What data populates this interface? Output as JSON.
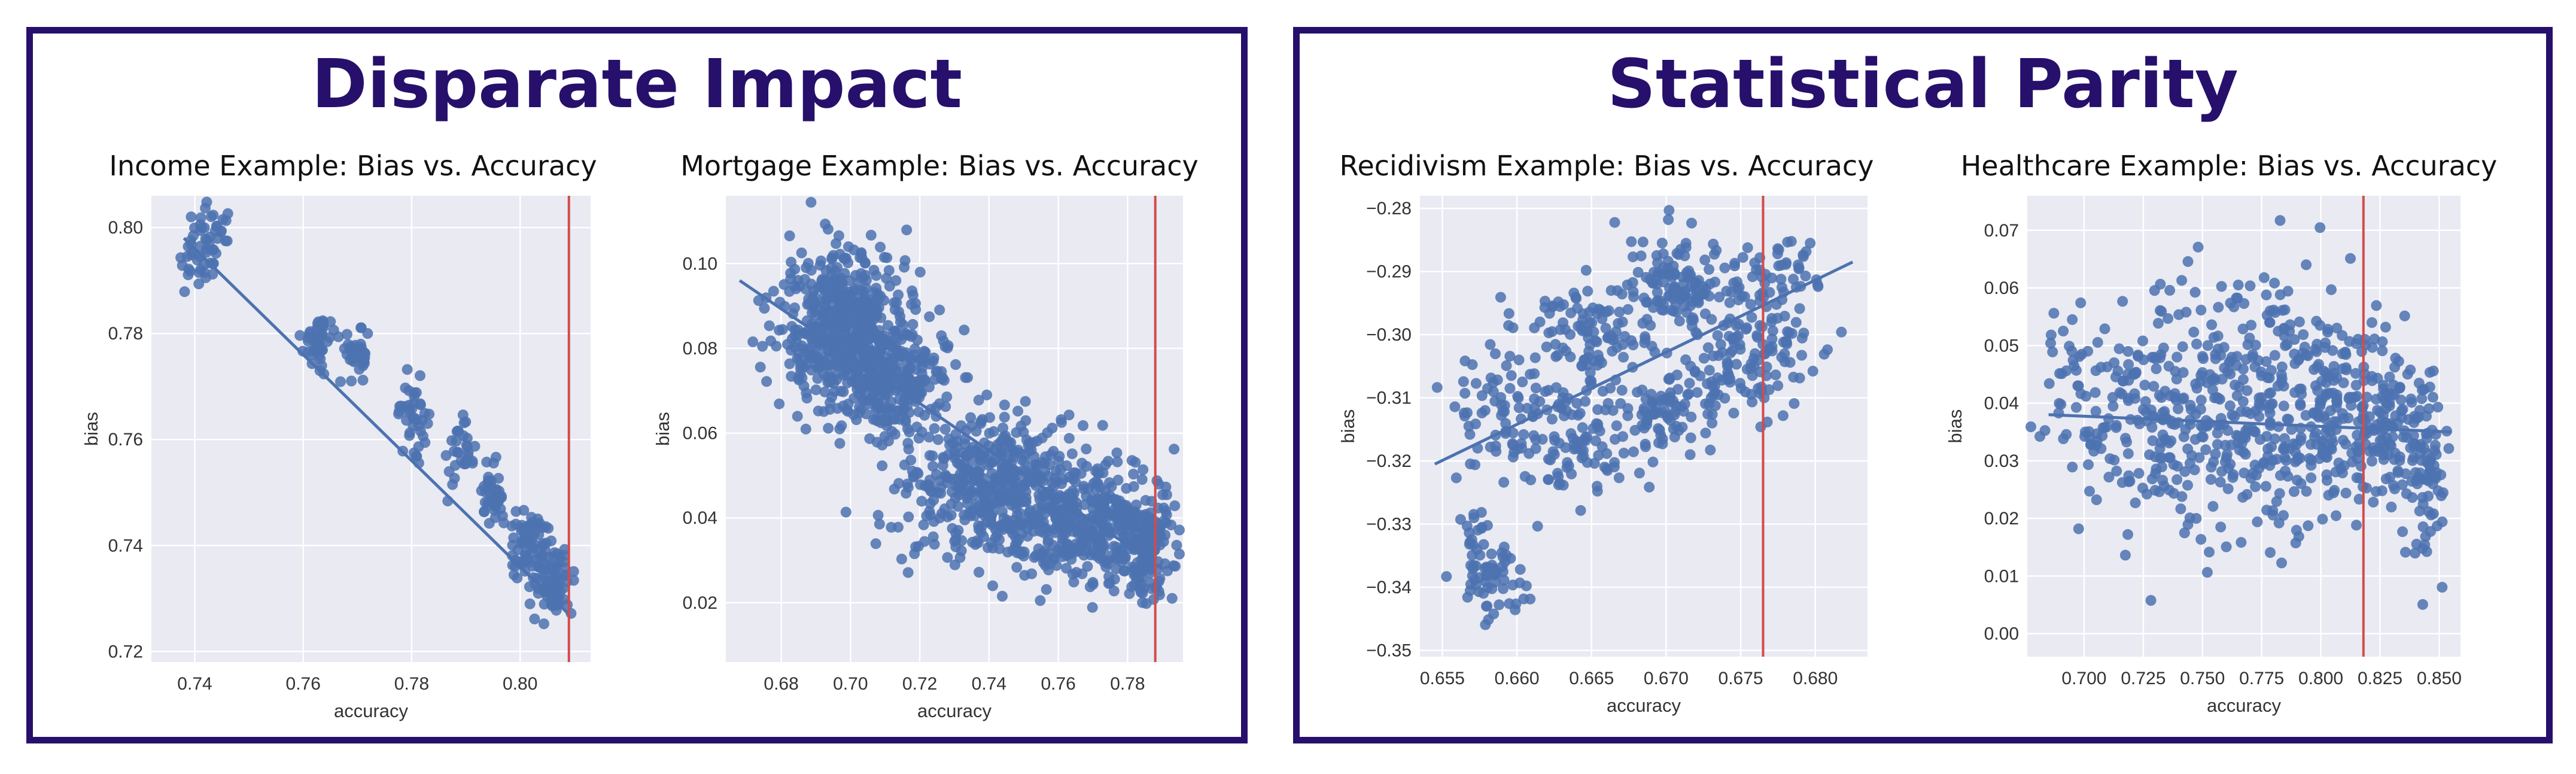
{
  "panels": [
    {
      "title": "Disparate Impact"
    },
    {
      "title": "Statistical Parity"
    }
  ],
  "colors": {
    "frame": "#26106b",
    "plot_bg": "#e9eaf2",
    "grid": "#ffffff",
    "points": "#4c72b0",
    "fit_line": "#4c72b0",
    "vline": "#d24b4b"
  },
  "chart_data": [
    {
      "type": "scatter",
      "title": "Income Example: Bias vs. Accuracy",
      "xlabel": "accuracy",
      "ylabel": "bias",
      "xlim": [
        0.732,
        0.813
      ],
      "ylim": [
        0.718,
        0.806
      ],
      "xticks": [
        0.74,
        0.76,
        0.78,
        0.8
      ],
      "xtick_labels": [
        "0.74",
        "0.76",
        "0.78",
        "0.80"
      ],
      "yticks": [
        0.72,
        0.74,
        0.76,
        0.78,
        0.8
      ],
      "ytick_labels": [
        "0.72",
        "0.74",
        "0.76",
        "0.78",
        "0.80"
      ],
      "grid": true,
      "vline": 0.809,
      "fit_line": [
        [
          0.738,
          0.798
        ],
        [
          0.809,
          0.727
        ]
      ],
      "clusters": [
        {
          "x": 0.741,
          "y": 0.795,
          "sx": 0.0025,
          "sy": 0.004,
          "n": 45
        },
        {
          "x": 0.744,
          "y": 0.802,
          "sx": 0.0015,
          "sy": 0.002,
          "n": 12
        },
        {
          "x": 0.763,
          "y": 0.779,
          "sx": 0.0015,
          "sy": 0.0025,
          "n": 45
        },
        {
          "x": 0.77,
          "y": 0.776,
          "sx": 0.0012,
          "sy": 0.0025,
          "n": 35
        },
        {
          "x": 0.78,
          "y": 0.765,
          "sx": 0.0015,
          "sy": 0.003,
          "n": 40
        },
        {
          "x": 0.789,
          "y": 0.757,
          "sx": 0.0012,
          "sy": 0.003,
          "n": 30
        },
        {
          "x": 0.795,
          "y": 0.749,
          "sx": 0.0015,
          "sy": 0.003,
          "n": 40
        },
        {
          "x": 0.802,
          "y": 0.74,
          "sx": 0.002,
          "sy": 0.003,
          "n": 70
        },
        {
          "x": 0.806,
          "y": 0.733,
          "sx": 0.0018,
          "sy": 0.003,
          "n": 80
        }
      ]
    },
    {
      "type": "scatter",
      "title": "Mortgage Example: Bias vs. Accuracy",
      "xlabel": "accuracy",
      "ylabel": "bias",
      "xlim": [
        0.664,
        0.796
      ],
      "ylim": [
        0.006,
        0.116
      ],
      "xticks": [
        0.68,
        0.7,
        0.72,
        0.74,
        0.76,
        0.78
      ],
      "xtick_labels": [
        "0.68",
        "0.70",
        "0.72",
        "0.74",
        "0.76",
        "0.78"
      ],
      "yticks": [
        0.02,
        0.04,
        0.06,
        0.08,
        0.1
      ],
      "ytick_labels": [
        "0.02",
        "0.04",
        "0.06",
        "0.08",
        "0.10"
      ],
      "grid": true,
      "vline": 0.788,
      "fit_line": [
        [
          0.668,
          0.096
        ],
        [
          0.79,
          0.028
        ]
      ],
      "clusters": [
        {
          "x": 0.698,
          "y": 0.086,
          "sx": 0.009,
          "sy": 0.009,
          "n": 500
        },
        {
          "x": 0.712,
          "y": 0.072,
          "sx": 0.008,
          "sy": 0.007,
          "n": 250
        },
        {
          "x": 0.74,
          "y": 0.047,
          "sx": 0.012,
          "sy": 0.009,
          "n": 450
        },
        {
          "x": 0.77,
          "y": 0.038,
          "sx": 0.011,
          "sy": 0.007,
          "n": 350
        },
        {
          "x": 0.785,
          "y": 0.032,
          "sx": 0.004,
          "sy": 0.005,
          "n": 120
        }
      ]
    },
    {
      "type": "scatter",
      "title": "Recidivism Example: Bias vs. Accuracy",
      "xlabel": "accuracy",
      "ylabel": "bias",
      "xlim": [
        0.6535,
        0.6835
      ],
      "ylim": [
        -0.351,
        -0.278
      ],
      "xticks": [
        0.655,
        0.66,
        0.665,
        0.67,
        0.675,
        0.68
      ],
      "xtick_labels": [
        "0.655",
        "0.660",
        "0.665",
        "0.670",
        "0.675",
        "0.680"
      ],
      "yticks": [
        -0.35,
        -0.34,
        -0.33,
        -0.32,
        -0.31,
        -0.3,
        -0.29,
        -0.28
      ],
      "ytick_labels": [
        "−0.35",
        "−0.34",
        "−0.33",
        "−0.32",
        "−0.31",
        "−0.30",
        "−0.29",
        "−0.28"
      ],
      "grid": true,
      "vline": 0.6765,
      "fit_line": [
        [
          0.6545,
          -0.3205
        ],
        [
          0.6825,
          -0.2885
        ]
      ],
      "clusters": [
        {
          "x": 0.6585,
          "y": -0.3385,
          "sx": 0.0012,
          "sy": 0.0035,
          "n": 60
        },
        {
          "x": 0.657,
          "y": -0.331,
          "sx": 0.0006,
          "sy": 0.0015,
          "n": 15
        },
        {
          "x": 0.659,
          "y": -0.312,
          "sx": 0.002,
          "sy": 0.006,
          "n": 70
        },
        {
          "x": 0.664,
          "y": -0.316,
          "sx": 0.002,
          "sy": 0.005,
          "n": 100
        },
        {
          "x": 0.665,
          "y": -0.3,
          "sx": 0.002,
          "sy": 0.004,
          "n": 90
        },
        {
          "x": 0.6705,
          "y": -0.293,
          "sx": 0.002,
          "sy": 0.004,
          "n": 130
        },
        {
          "x": 0.67,
          "y": -0.311,
          "sx": 0.002,
          "sy": 0.004,
          "n": 90
        },
        {
          "x": 0.676,
          "y": -0.303,
          "sx": 0.002,
          "sy": 0.005,
          "n": 130
        },
        {
          "x": 0.678,
          "y": -0.29,
          "sx": 0.0015,
          "sy": 0.003,
          "n": 40
        }
      ]
    },
    {
      "type": "scatter",
      "title": "Healthcare Example: Bias vs. Accuracy",
      "xlabel": "accuracy",
      "ylabel": "bias",
      "xlim": [
        0.676,
        0.859
      ],
      "ylim": [
        -0.004,
        0.076
      ],
      "xticks": [
        0.7,
        0.725,
        0.75,
        0.775,
        0.8,
        0.825,
        0.85
      ],
      "xtick_labels": [
        "0.700",
        "0.725",
        "0.750",
        "0.775",
        "0.800",
        "0.825",
        "0.850"
      ],
      "yticks": [
        0.0,
        0.01,
        0.02,
        0.03,
        0.04,
        0.05,
        0.06,
        0.07
      ],
      "ytick_labels": [
        "0.00",
        "0.01",
        "0.02",
        "0.03",
        "0.04",
        "0.05",
        "0.06",
        "0.07"
      ],
      "grid": true,
      "vline": 0.818,
      "fit_line": [
        [
          0.685,
          0.038
        ],
        [
          0.855,
          0.035
        ]
      ],
      "clusters": [
        {
          "x": 0.7,
          "y": 0.04,
          "sx": 0.009,
          "sy": 0.009,
          "n": 70
        },
        {
          "x": 0.735,
          "y": 0.038,
          "sx": 0.012,
          "sy": 0.012,
          "n": 160
        },
        {
          "x": 0.77,
          "y": 0.04,
          "sx": 0.014,
          "sy": 0.011,
          "n": 220
        },
        {
          "x": 0.805,
          "y": 0.039,
          "sx": 0.012,
          "sy": 0.009,
          "n": 180
        },
        {
          "x": 0.83,
          "y": 0.037,
          "sx": 0.008,
          "sy": 0.008,
          "n": 120
        },
        {
          "x": 0.846,
          "y": 0.027,
          "sx": 0.004,
          "sy": 0.008,
          "n": 60
        }
      ]
    }
  ]
}
